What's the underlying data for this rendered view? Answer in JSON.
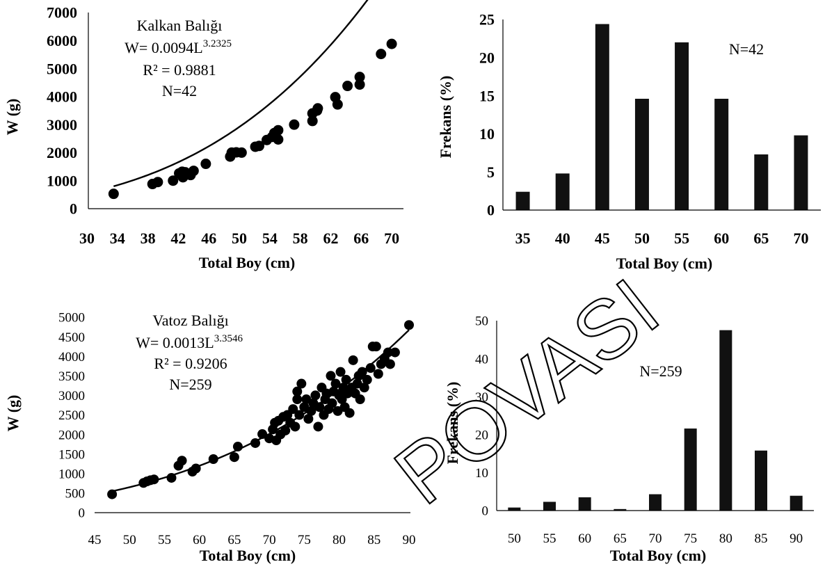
{
  "watermark": "POVASI",
  "chart_data": [
    {
      "type": "scatter",
      "xlabel": "Total Boy (cm)",
      "ylabel": "W (g)",
      "xlim": [
        30,
        72
      ],
      "ylim": [
        0,
        7000
      ],
      "xticks": [
        30,
        34,
        38,
        42,
        46,
        50,
        54,
        58,
        62,
        66,
        70
      ],
      "yticks": [
        0,
        1000,
        2000,
        3000,
        4000,
        5000,
        6000,
        7000
      ],
      "annotation": {
        "species": "Kalkan Balığı",
        "equation_prefix": "W= 0.0094L",
        "equation_exponent": "3.2325",
        "r2": "R² = 0.9881",
        "n": "N=42"
      },
      "fit": {
        "a": 0.0094,
        "b": 3.2325,
        "x_from": 33.5,
        "x_to": 70
      },
      "points": [
        [
          33.5,
          530
        ],
        [
          38.6,
          880
        ],
        [
          39.3,
          950
        ],
        [
          41.3,
          1000
        ],
        [
          42.1,
          1260
        ],
        [
          42.5,
          1320
        ],
        [
          42.9,
          1300
        ],
        [
          42.6,
          1120
        ],
        [
          43.6,
          1200
        ],
        [
          44,
          1350
        ],
        [
          45.6,
          1600
        ],
        [
          48.8,
          1860
        ],
        [
          49,
          2000
        ],
        [
          49.6,
          2010
        ],
        [
          50.3,
          2000
        ],
        [
          52.1,
          2210
        ],
        [
          52.6,
          2240
        ],
        [
          53.6,
          2450
        ],
        [
          54.3,
          2560
        ],
        [
          54.6,
          2700
        ],
        [
          55.1,
          2800
        ],
        [
          55.1,
          2470
        ],
        [
          57.2,
          3000
        ],
        [
          59.6,
          3130
        ],
        [
          59.6,
          3400
        ],
        [
          60.2,
          3500
        ],
        [
          60.3,
          3580
        ],
        [
          62.6,
          3980
        ],
        [
          62.9,
          3720
        ],
        [
          64.2,
          4380
        ],
        [
          65.8,
          4430
        ],
        [
          65.8,
          4700
        ],
        [
          68.6,
          5520
        ],
        [
          70,
          5880
        ]
      ]
    },
    {
      "type": "bar",
      "xlabel": "Total Boy (cm)",
      "ylabel": "Frekans (%)",
      "annotation": "N=42",
      "categories": [
        "35",
        "40",
        "45",
        "50",
        "55",
        "60",
        "65",
        "70"
      ],
      "values": [
        2.4,
        4.8,
        24.4,
        14.6,
        22,
        14.6,
        7.3,
        9.8
      ],
      "ylim": [
        0,
        25
      ],
      "yticks": [
        0,
        5,
        10,
        15,
        20,
        25
      ]
    },
    {
      "type": "scatter",
      "xlabel": "Total Boy (cm)",
      "ylabel": "W (g)",
      "xlim": [
        45,
        90
      ],
      "ylim": [
        0,
        5000
      ],
      "xticks": [
        45,
        50,
        55,
        60,
        65,
        70,
        75,
        80,
        85,
        90
      ],
      "yticks": [
        0,
        500,
        1000,
        1500,
        2000,
        2500,
        3000,
        3500,
        4000,
        4500,
        5000
      ],
      "annotation": {
        "species": "Vatoz Balığı",
        "equation_prefix": "W= 0.0013L",
        "equation_exponent": "3.3546",
        "r2": "R² = 0.9206",
        "n": "N=259"
      },
      "fit": {
        "a": 0.0013,
        "b": 3.3546,
        "x_from": 47.5,
        "x_to": 90
      },
      "points": [
        [
          47.5,
          470
        ],
        [
          52,
          760
        ],
        [
          52.5,
          800
        ],
        [
          53,
          830
        ],
        [
          53.5,
          850
        ],
        [
          56,
          890
        ],
        [
          57,
          1200
        ],
        [
          57.5,
          1330
        ],
        [
          59,
          1050
        ],
        [
          59.5,
          1130
        ],
        [
          62,
          1370
        ],
        [
          65,
          1420
        ],
        [
          65.5,
          1690
        ],
        [
          68,
          1780
        ],
        [
          69,
          2010
        ],
        [
          70,
          1900
        ],
        [
          70.5,
          2130
        ],
        [
          70.8,
          2300
        ],
        [
          71,
          1850
        ],
        [
          71.3,
          2350
        ],
        [
          71.6,
          2000
        ],
        [
          72,
          2450
        ],
        [
          72.3,
          2100
        ],
        [
          72.6,
          2500
        ],
        [
          73,
          2300
        ],
        [
          73.4,
          2650
        ],
        [
          73.7,
          2200
        ],
        [
          74,
          2900
        ],
        [
          74,
          3100
        ],
        [
          74.3,
          2500
        ],
        [
          74.6,
          3300
        ],
        [
          75,
          2700
        ],
        [
          75.3,
          2900
        ],
        [
          75.6,
          2400
        ],
        [
          76,
          2600
        ],
        [
          76.3,
          2800
        ],
        [
          76.6,
          3000
        ],
        [
          77,
          2200
        ],
        [
          77.2,
          2700
        ],
        [
          77.5,
          3200
        ],
        [
          77.8,
          2500
        ],
        [
          78,
          2900
        ],
        [
          78.2,
          3050
        ],
        [
          78.5,
          2650
        ],
        [
          78.8,
          3500
        ],
        [
          79,
          2800
        ],
        [
          79.2,
          3100
        ],
        [
          79.5,
          3300
        ],
        [
          79.8,
          2600
        ],
        [
          80,
          3000
        ],
        [
          80.2,
          3600
        ],
        [
          80.4,
          2900
        ],
        [
          80.6,
          3200
        ],
        [
          80.8,
          2700
        ],
        [
          81,
          3400
        ],
        [
          81.2,
          3050
        ],
        [
          81.5,
          2550
        ],
        [
          81.8,
          3200
        ],
        [
          82,
          3900
        ],
        [
          82.3,
          3050
        ],
        [
          82.6,
          3300
        ],
        [
          82.8,
          3500
        ],
        [
          83,
          2900
        ],
        [
          83.3,
          3600
        ],
        [
          83.6,
          3200
        ],
        [
          84,
          3400
        ],
        [
          84.5,
          3700
        ],
        [
          84.8,
          4250
        ],
        [
          85.3,
          4250
        ],
        [
          85.6,
          3550
        ],
        [
          86,
          3800
        ],
        [
          86.5,
          3950
        ],
        [
          87,
          4100
        ],
        [
          87.3,
          3800
        ],
        [
          88,
          4100
        ],
        [
          90,
          4800
        ]
      ]
    },
    {
      "type": "bar",
      "xlabel": "Total Boy (cm)",
      "ylabel": "Frekans (%)",
      "annotation": "N=259",
      "categories": [
        "50",
        "55",
        "60",
        "65",
        "70",
        "75",
        "80",
        "85",
        "90"
      ],
      "values": [
        0.8,
        2.3,
        3.5,
        0.4,
        4.3,
        21.6,
        47.5,
        15.8,
        3.9
      ],
      "ylim": [
        0,
        50
      ],
      "yticks": [
        0,
        10,
        20,
        30,
        40,
        50
      ]
    }
  ]
}
